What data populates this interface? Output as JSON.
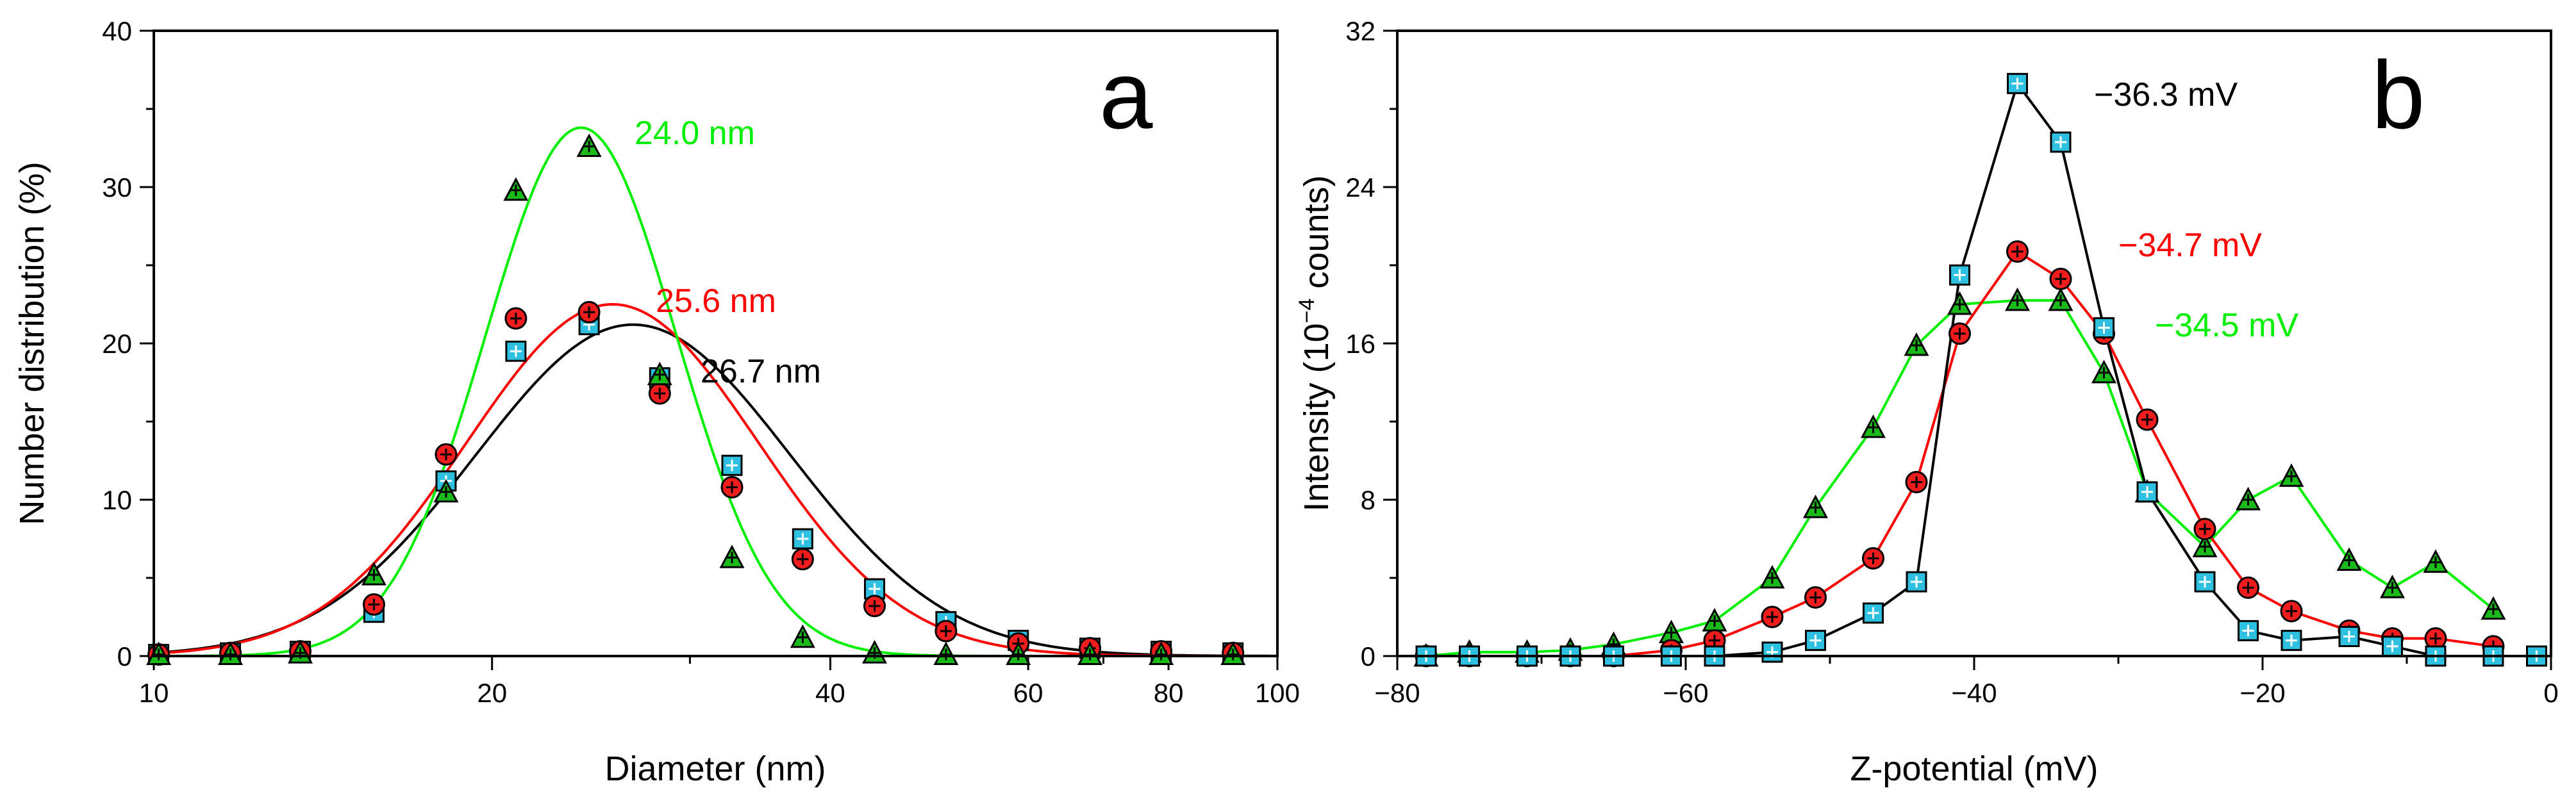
{
  "chart_data": [
    {
      "panel": "a",
      "type": "scatter",
      "xlabel": "Diameter (nm)",
      "ylabel": "Number distribution (%)",
      "xscale": "log",
      "xlim": [
        10,
        100
      ],
      "ylim": [
        0,
        40
      ],
      "xticks": [
        10,
        20,
        40,
        60,
        80,
        100
      ],
      "yticks": [
        0,
        10,
        20,
        30,
        40
      ],
      "grid": false,
      "series": [
        {
          "color": "#000000",
          "marker": "square",
          "fill": "#2ec0e0",
          "x": [
            10.1,
            11.7,
            13.5,
            15.7,
            18.2,
            21.0,
            24.4,
            28.2,
            32.7,
            37.8,
            43.8,
            50.7,
            58.8,
            68.1,
            78.8,
            91.3
          ],
          "y": [
            0.1,
            0.2,
            0.3,
            2.8,
            11.2,
            19.5,
            21.2,
            17.8,
            12.2,
            7.5,
            4.3,
            2.2,
            1.0,
            0.5,
            0.3,
            0.2
          ],
          "fit": {
            "peak": 26.7,
            "amplitude": 21.2,
            "sigma_log10": 0.14
          },
          "annotation": "26.7 nm"
        },
        {
          "color": "#ff0000",
          "marker": "circle",
          "fill": "#ee1c1c",
          "x": [
            10.1,
            11.7,
            13.5,
            15.7,
            18.2,
            21.0,
            24.4,
            28.2,
            32.7,
            37.8,
            43.8,
            50.7,
            58.8,
            68.1,
            78.8,
            91.3
          ],
          "y": [
            0.1,
            0.2,
            0.3,
            3.3,
            12.9,
            21.6,
            22.0,
            16.8,
            10.8,
            6.2,
            3.2,
            1.6,
            0.8,
            0.5,
            0.3,
            0.2
          ],
          "fit": {
            "peak": 25.6,
            "amplitude": 22.5,
            "sigma_log10": 0.13
          },
          "annotation": "25.6 nm"
        },
        {
          "color": "#00ee00",
          "marker": "triangle",
          "fill": "#1aba1a",
          "x": [
            10.1,
            11.7,
            13.5,
            15.7,
            18.2,
            21.0,
            24.4,
            28.2,
            32.7,
            37.8,
            43.8,
            50.7,
            58.8,
            68.1,
            78.8,
            91.3
          ],
          "y": [
            0.1,
            0.1,
            0.2,
            5.2,
            10.5,
            29.8,
            32.6,
            18.0,
            6.3,
            1.2,
            0.2,
            0.1,
            0.1,
            0.1,
            0.1,
            0.1
          ],
          "fit": {
            "peak": 24.0,
            "amplitude": 33.8,
            "sigma_log10": 0.085
          },
          "annotation": "24.0 nm"
        }
      ],
      "panel_label": "a"
    },
    {
      "panel": "b",
      "type": "line",
      "xlabel": "Z-potential (mV)",
      "ylabel_parts": [
        "Intensity (10",
        "−4",
        " counts)"
      ],
      "xlim": [
        -80,
        0
      ],
      "ylim": [
        0,
        32
      ],
      "xticks": [
        -80,
        -60,
        -40,
        -20,
        0
      ],
      "xtick_labels": [
        "−80",
        "−60",
        "−40",
        "−20",
        "0"
      ],
      "yticks": [
        0,
        8,
        16,
        24,
        32
      ],
      "grid": false,
      "series": [
        {
          "color": "#000000",
          "marker": "square",
          "fill": "#2ec0e0",
          "x": [
            -78,
            -75,
            -71,
            -68,
            -65,
            -61,
            -58,
            -54,
            -51,
            -47,
            -44,
            -41,
            -37,
            -34,
            -31,
            -28,
            -24,
            -21,
            -18,
            -14,
            -11,
            -8,
            -4,
            -1
          ],
          "y": [
            0,
            0,
            0,
            0,
            0,
            0,
            0,
            0.2,
            0.8,
            2.2,
            3.8,
            19.5,
            29.3,
            26.3,
            16.8,
            8.4,
            3.8,
            1.3,
            0.8,
            1.0,
            0.5,
            0,
            0,
            0
          ],
          "annotation": "−36.3 mV"
        },
        {
          "color": "#ff0000",
          "marker": "circle",
          "fill": "#ee1c1c",
          "x": [
            -78,
            -75,
            -71,
            -68,
            -65,
            -61,
            -58,
            -54,
            -51,
            -47,
            -44,
            -41,
            -37,
            -34,
            -31,
            -28,
            -24,
            -21,
            -18,
            -14,
            -11,
            -8,
            -4
          ],
          "y": [
            0,
            0,
            0,
            0,
            0,
            0.3,
            0.8,
            2.0,
            3.0,
            5.0,
            8.9,
            16.5,
            20.7,
            19.3,
            16.5,
            12.1,
            6.5,
            3.5,
            2.3,
            1.3,
            0.9,
            0.9,
            0.5
          ],
          "annotation": "−34.7 mV"
        },
        {
          "color": "#00ee00",
          "marker": "triangle",
          "fill": "#1aba1a",
          "x": [
            -78,
            -75,
            -71,
            -68,
            -65,
            -61,
            -58,
            -54,
            -51,
            -47,
            -44,
            -41,
            -37,
            -34,
            -31,
            -28,
            -24,
            -21,
            -18,
            -14,
            -11,
            -8,
            -4
          ],
          "y": [
            0,
            0.2,
            0.2,
            0.3,
            0.6,
            1.2,
            1.8,
            4.0,
            7.6,
            11.7,
            15.9,
            18.0,
            18.2,
            18.2,
            14.5,
            8.4,
            5.6,
            8.0,
            9.2,
            4.9,
            3.5,
            4.8,
            2.4
          ],
          "annotation": "−34.5 mV"
        }
      ],
      "panel_label": "b"
    }
  ]
}
